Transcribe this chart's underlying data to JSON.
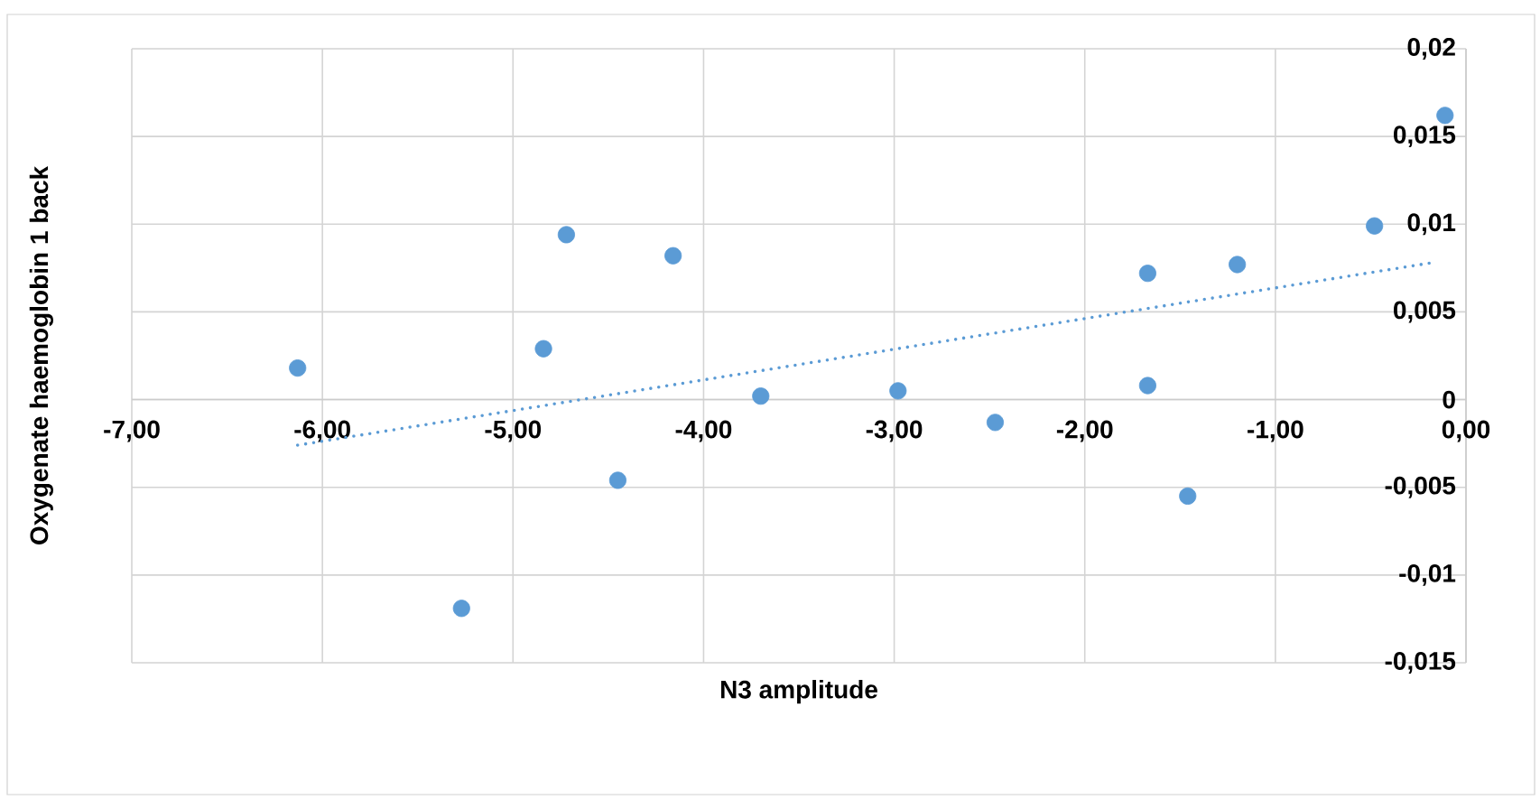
{
  "chart_data": {
    "type": "scatter",
    "xlabel": "N3 amplitude",
    "ylabel": "Oxygenate haemoglobin 1 back",
    "grid": true,
    "xlim": [
      -7,
      0
    ],
    "xticks": [
      {
        "value": -7,
        "label": "-7,00"
      },
      {
        "value": -6,
        "label": "-6,00"
      },
      {
        "value": -5,
        "label": "-5,00"
      },
      {
        "value": -4,
        "label": "-4,00"
      },
      {
        "value": -3,
        "label": "-3,00"
      },
      {
        "value": -2,
        "label": "-2,00"
      },
      {
        "value": -1,
        "label": "-1,00"
      },
      {
        "value": 0,
        "label": "0,00"
      }
    ],
    "ylim": [
      -0.015,
      0.02
    ],
    "yticks": [
      {
        "value": -0.015,
        "label": "-0,015"
      },
      {
        "value": -0.01,
        "label": "-0,01"
      },
      {
        "value": -0.005,
        "label": "-0,005"
      },
      0,
      {
        "value": 0.005,
        "label": "0,005"
      },
      {
        "value": 0.01,
        "label": "0,01"
      },
      {
        "value": 0.015,
        "label": "0,015"
      },
      {
        "value": 0.02,
        "label": "0,02"
      }
    ],
    "series": [
      {
        "color": "#5b9bd5",
        "x": [
          -6.13,
          -5.27,
          -4.84,
          -4.72,
          -4.45,
          -4.16,
          -3.7,
          -2.98,
          -2.47,
          -1.67,
          -1.67,
          -1.46,
          -1.2,
          -0.48,
          -0.11
        ],
        "values": [
          0.0018,
          -0.0119,
          0.0029,
          0.0094,
          -0.0046,
          0.0082,
          0.0002,
          0.0005,
          -0.0013,
          0.0072,
          0.0008,
          -0.0055,
          0.0077,
          0.0099,
          0.0162
        ]
      },
      {
        "type": "line",
        "line_style": "dotted",
        "marker": "none",
        "color": "#5b9bd5",
        "x": [
          -6.13,
          -0.18
        ],
        "values": [
          -0.0026,
          0.0078
        ]
      }
    ]
  }
}
